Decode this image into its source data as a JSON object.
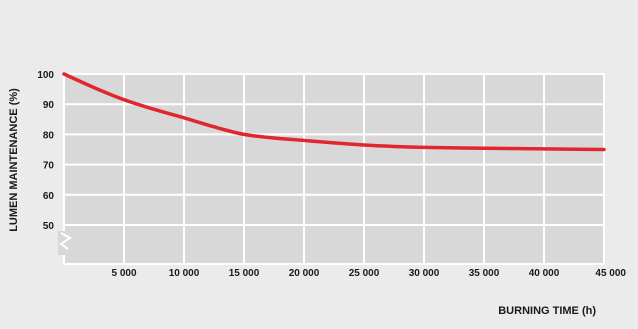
{
  "chart_data": {
    "type": "line",
    "xlabel": "BURNING TIME (h)",
    "ylabel": "LUMEN MAINTENANCE (%)",
    "xlim": [
      0,
      45000
    ],
    "ylim": [
      45,
      100
    ],
    "y_axis_break": true,
    "grid": true,
    "x_ticks": [
      {
        "value": 5000,
        "label": "5 000"
      },
      {
        "value": 10000,
        "label": "10 000"
      },
      {
        "value": 15000,
        "label": "15 000"
      },
      {
        "value": 20000,
        "label": "20 000"
      },
      {
        "value": 25000,
        "label": "25 000"
      },
      {
        "value": 30000,
        "label": "30 000"
      },
      {
        "value": 35000,
        "label": "35 000"
      },
      {
        "value": 40000,
        "label": "40 000"
      },
      {
        "value": 45000,
        "label": "45 000"
      }
    ],
    "y_ticks": [
      {
        "value": 100,
        "label": "100"
      },
      {
        "value": 90,
        "label": "90"
      },
      {
        "value": 80,
        "label": "80"
      },
      {
        "value": 70,
        "label": "70"
      },
      {
        "value": 60,
        "label": "60"
      },
      {
        "value": 50,
        "label": "50"
      }
    ],
    "series": [
      {
        "color": "#e0262f",
        "x": [
          0,
          2500,
          5000,
          7500,
          10000,
          12500,
          15000,
          17500,
          20000,
          22500,
          25000,
          27500,
          30000,
          35000,
          40000,
          45000
        ],
        "y": [
          100,
          95.5,
          91.5,
          88.3,
          85.5,
          82.5,
          80,
          78.8,
          78,
          77.2,
          76.5,
          76,
          75.7,
          75.4,
          75.2,
          75
        ]
      }
    ]
  }
}
